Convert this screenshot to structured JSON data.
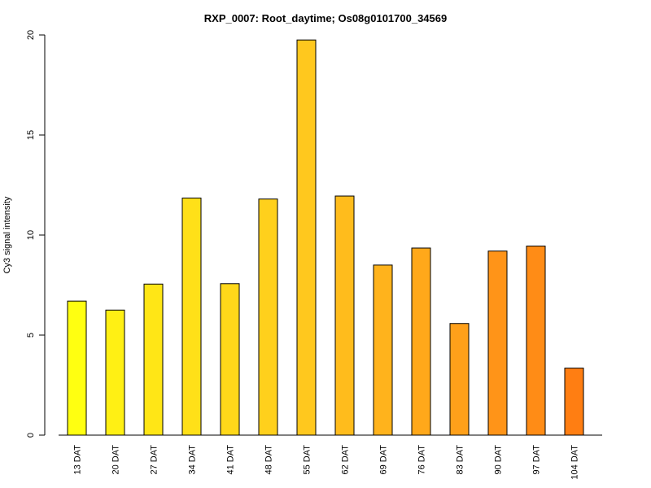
{
  "chart_data": {
    "type": "bar",
    "title": "RXP_0007: Root_daytime; Os08g0101700_34569",
    "xlabel": "",
    "ylabel": "Cy3 signal intensity",
    "ylim": [
      0,
      20
    ],
    "yticks": [
      0,
      5,
      10,
      15,
      20
    ],
    "grid": false,
    "categories": [
      "13 DAT",
      "20 DAT",
      "27 DAT",
      "34 DAT",
      "41 DAT",
      "48 DAT",
      "55 DAT",
      "62 DAT",
      "69 DAT",
      "76 DAT",
      "83 DAT",
      "90 DAT",
      "97 DAT",
      "104 DAT"
    ],
    "values": [
      6.7,
      6.25,
      7.55,
      11.85,
      7.57,
      11.8,
      19.75,
      11.95,
      8.5,
      9.35,
      5.58,
      9.2,
      9.45,
      3.35
    ],
    "colors": [
      "#FFFF11",
      "#FFF014",
      "#FFE616",
      "#FFE018",
      "#FFD81A",
      "#FFD01C",
      "#FFC81E",
      "#FFBC1C",
      "#FFB31C",
      "#FFA81A",
      "#FFA01A",
      "#FF9418",
      "#FF8C16",
      "#FF7E12"
    ]
  }
}
